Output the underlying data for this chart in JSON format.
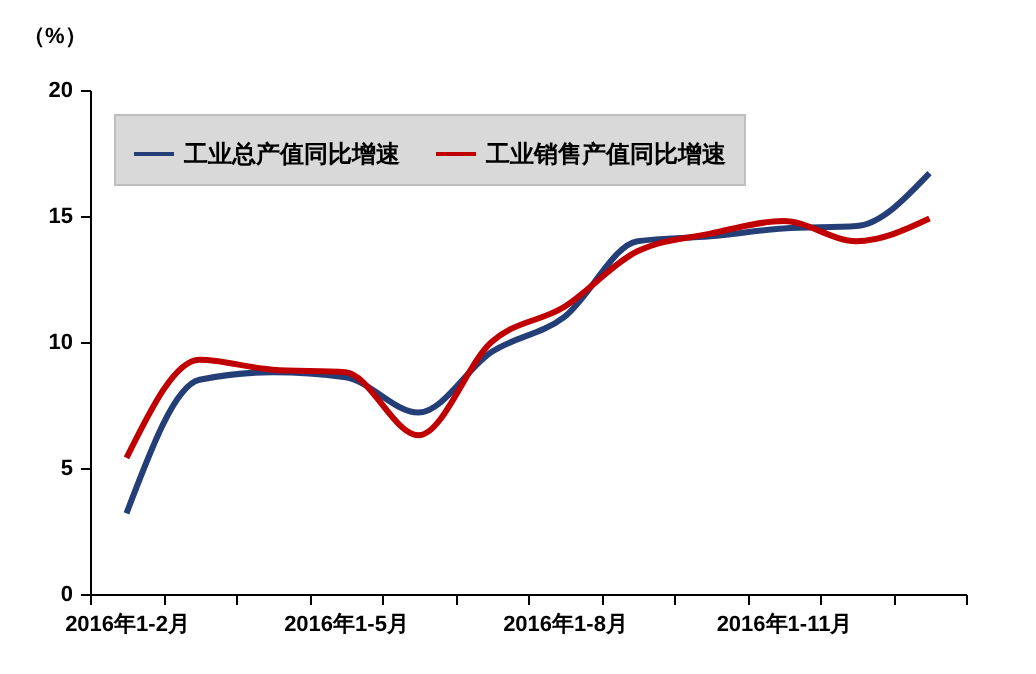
{
  "chart_data": {
    "type": "line",
    "ylabel": "（%）",
    "categories": [
      "2016年1-2月",
      null,
      null,
      "2016年1-5月",
      null,
      null,
      "2016年1-8月",
      null,
      null,
      "2016年1-11月",
      null,
      null
    ],
    "series": [
      {
        "name": "工业总产值同比增速",
        "color": "#243f78",
        "values": [
          3.2,
          8.5,
          8.8,
          8.6,
          7.2,
          9.6,
          11.0,
          14.0,
          14.2,
          14.5,
          14.6,
          16.7
        ]
      },
      {
        "name": "工业销售产值同比增速",
        "color": "#c00000",
        "values": [
          5.4,
          9.3,
          8.9,
          8.8,
          6.3,
          10.0,
          11.4,
          13.6,
          14.3,
          14.8,
          14.0,
          14.9
        ]
      }
    ],
    "ylim": [
      0,
      20
    ],
    "yticks": [
      0,
      5,
      10,
      15,
      20
    ],
    "grid": false,
    "legend": "top left",
    "line_style": "solid",
    "marker": "none"
  }
}
